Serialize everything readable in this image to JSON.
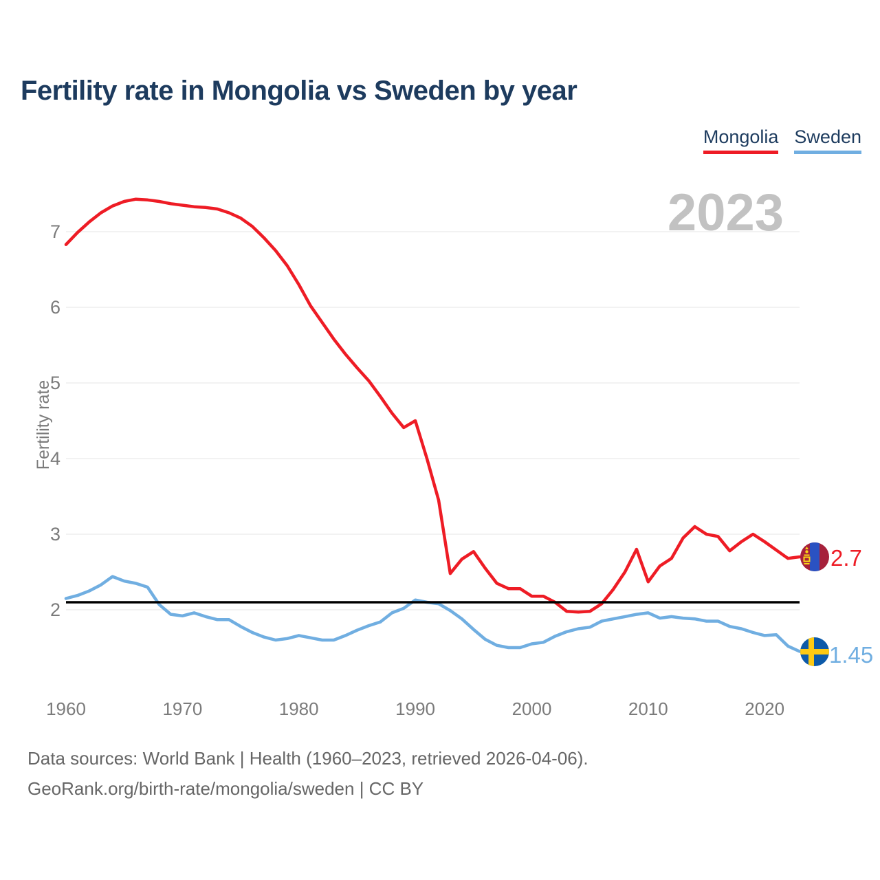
{
  "title": "Fertility rate in Mongolia vs Sweden by year",
  "watermark_year": "2023",
  "legend": {
    "items": [
      {
        "label": "Mongolia",
        "color": "#ee1c25"
      },
      {
        "label": "Sweden",
        "color": "#70aee1"
      }
    ]
  },
  "end_labels": {
    "mongolia": {
      "value": "2.7",
      "color": "#ee1c25"
    },
    "sweden": {
      "value": "1.45",
      "color": "#70aee1"
    }
  },
  "icons": {
    "mongolia_flag": {
      "red": "#a6213b",
      "blue": "#2a52c2",
      "soyombo": "#f9d616"
    },
    "sweden_flag": {
      "blue": "#0d5aa9",
      "cross": "#fdc913"
    }
  },
  "axes": {
    "ylabel": "Fertility rate"
  },
  "footer": {
    "line1": "Data sources: World Bank | Health (1960–2023, retrieved 2026-04-06).",
    "line2": "GeoRank.org/birth-rate/mongolia/sweden | CC BY"
  },
  "chart_data": {
    "type": "line",
    "title": "Fertility rate in Mongolia vs Sweden by year",
    "xlabel": "",
    "ylabel": "Fertility rate",
    "ylim": [
      1.3,
      7.6
    ],
    "xlim": [
      1960,
      2023
    ],
    "yticks": [
      2,
      3,
      4,
      5,
      6,
      7
    ],
    "xticks": [
      1960,
      1970,
      1980,
      1990,
      2000,
      2010,
      2020
    ],
    "grid": true,
    "legend_position": "top-right",
    "reference_line": {
      "value": 2.1,
      "color": "#000000",
      "meaning": "replacement-level fertility"
    },
    "x": [
      1960,
      1961,
      1962,
      1963,
      1964,
      1965,
      1966,
      1967,
      1968,
      1969,
      1970,
      1971,
      1972,
      1973,
      1974,
      1975,
      1976,
      1977,
      1978,
      1979,
      1980,
      1981,
      1982,
      1983,
      1984,
      1985,
      1986,
      1987,
      1988,
      1989,
      1990,
      1991,
      1992,
      1993,
      1994,
      1995,
      1996,
      1997,
      1998,
      1999,
      2000,
      2001,
      2002,
      2003,
      2004,
      2005,
      2006,
      2007,
      2008,
      2009,
      2010,
      2011,
      2012,
      2013,
      2014,
      2015,
      2016,
      2017,
      2018,
      2019,
      2020,
      2021,
      2022,
      2023
    ],
    "series": [
      {
        "name": "Mongolia",
        "color": "#ee1c25",
        "end_value": 2.7,
        "values": [
          6.83,
          6.99,
          7.13,
          7.25,
          7.34,
          7.4,
          7.43,
          7.42,
          7.4,
          7.37,
          7.35,
          7.33,
          7.32,
          7.3,
          7.25,
          7.18,
          7.07,
          6.92,
          6.75,
          6.55,
          6.3,
          6.02,
          5.8,
          5.58,
          5.38,
          5.2,
          5.03,
          4.82,
          4.6,
          4.41,
          4.5,
          4.0,
          3.45,
          2.48,
          2.67,
          2.77,
          2.55,
          2.35,
          2.28,
          2.28,
          2.18,
          2.18,
          2.1,
          1.98,
          1.97,
          1.98,
          2.08,
          2.27,
          2.5,
          2.8,
          2.37,
          2.58,
          2.68,
          2.95,
          3.1,
          3.0,
          2.97,
          2.78,
          2.9,
          3.0,
          2.9,
          2.79,
          2.68,
          2.7
        ]
      },
      {
        "name": "Sweden",
        "color": "#70aee1",
        "end_value": 1.45,
        "values": [
          2.15,
          2.19,
          2.25,
          2.33,
          2.44,
          2.38,
          2.35,
          2.3,
          2.07,
          1.94,
          1.92,
          1.96,
          1.91,
          1.87,
          1.87,
          1.78,
          1.7,
          1.64,
          1.6,
          1.62,
          1.66,
          1.63,
          1.6,
          1.6,
          1.66,
          1.73,
          1.79,
          1.84,
          1.96,
          2.02,
          2.13,
          2.1,
          2.08,
          1.99,
          1.88,
          1.74,
          1.61,
          1.53,
          1.5,
          1.5,
          1.55,
          1.57,
          1.65,
          1.71,
          1.75,
          1.77,
          1.85,
          1.88,
          1.91,
          1.94,
          1.96,
          1.89,
          1.91,
          1.89,
          1.88,
          1.85,
          1.85,
          1.78,
          1.75,
          1.7,
          1.66,
          1.67,
          1.52,
          1.45
        ]
      }
    ]
  }
}
